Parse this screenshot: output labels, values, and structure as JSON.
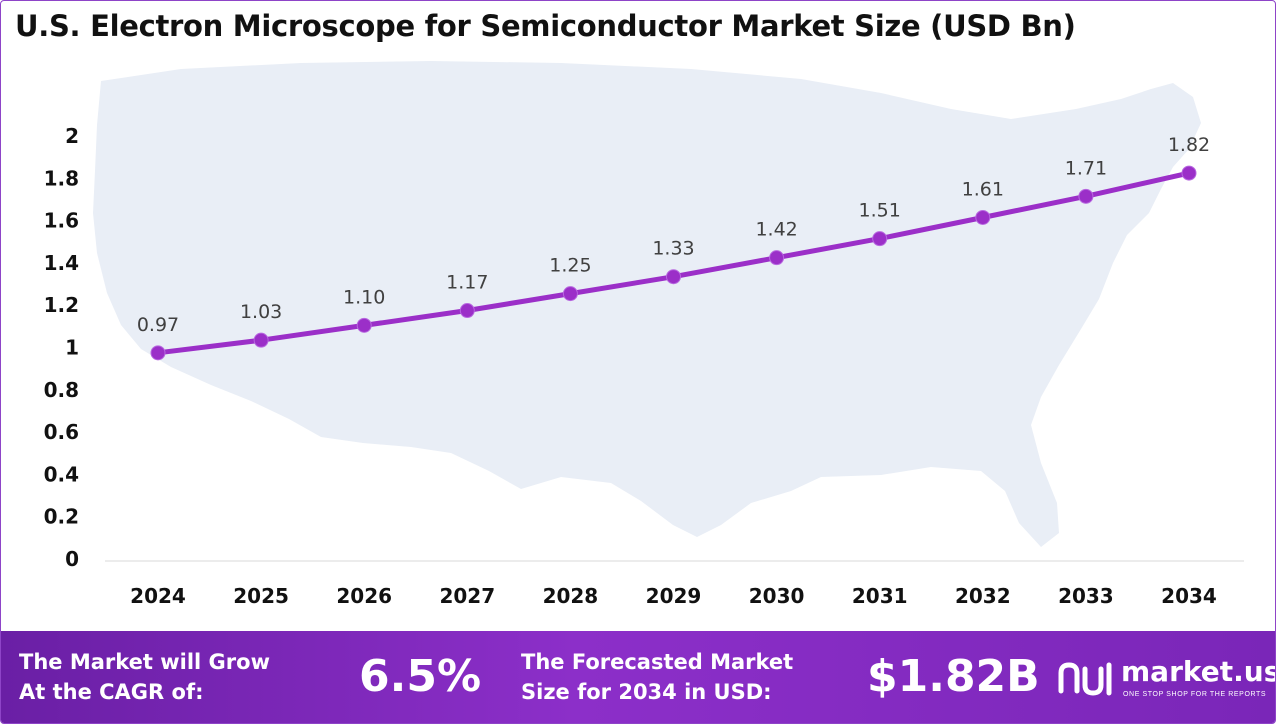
{
  "chart_data": {
    "type": "line",
    "title": "U.S. Electron Microscope for Semiconductor Market Size (USD Bn)",
    "categories": [
      "2024",
      "2025",
      "2026",
      "2027",
      "2028",
      "2029",
      "2030",
      "2031",
      "2032",
      "2033",
      "2034"
    ],
    "values": [
      0.97,
      1.03,
      1.1,
      1.17,
      1.25,
      1.33,
      1.42,
      1.51,
      1.61,
      1.71,
      1.82
    ],
    "data_labels": [
      "0.97",
      "1.03",
      "1.10",
      "1.17",
      "1.25",
      "1.33",
      "1.42",
      "1.51",
      "1.61",
      "1.71",
      "1.82"
    ],
    "ylim": [
      0,
      2
    ],
    "yticks": [
      "0",
      "0.2",
      "0.4",
      "0.6",
      "0.8",
      "1",
      "1.2",
      "1.4",
      "1.6",
      "1.8",
      "2"
    ],
    "grid": false,
    "legend": "none",
    "line_color": "#9b2fc8",
    "background_map": "United States silhouette"
  },
  "footer": {
    "cagr_label_line1": "The Market will Grow",
    "cagr_label_line2": "At the CAGR of:",
    "cagr_value": "6.5%",
    "forecast_label_line1": "The Forecasted Market",
    "forecast_label_line2": "Size for 2034 in USD:",
    "forecast_value": "$1.82B",
    "brand_name": "market.us",
    "brand_tagline": "ONE STOP SHOP FOR THE REPORTS",
    "background_color": "#7b27b8"
  }
}
